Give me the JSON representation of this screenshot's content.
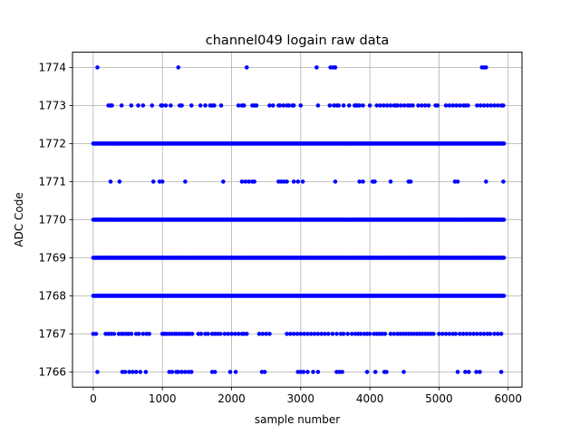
{
  "chart_data": {
    "type": "scatter",
    "title": "channel049 logain raw data",
    "xlabel": "sample number",
    "ylabel": "ADC Code",
    "xlim": [
      -300,
      6200
    ],
    "ylim": [
      1765.6,
      1774.4
    ],
    "xticks": [
      0,
      1000,
      2000,
      3000,
      4000,
      5000,
      6000
    ],
    "yticks": [
      1766,
      1767,
      1768,
      1769,
      1770,
      1771,
      1772,
      1773,
      1774
    ],
    "grid": true,
    "marker_color": "#0000ff",
    "sample_count": 5940,
    "levels": [
      {
        "y": 1774,
        "x": [
          60,
          1230,
          2220,
          3230,
          3430,
          3470,
          3500,
          5620,
          5650,
          5680
        ]
      },
      {
        "y": 1773,
        "x": [
          220,
          250,
          270,
          410,
          550,
          650,
          720,
          850,
          980,
          1000,
          1050,
          1120,
          1250,
          1280,
          1420,
          1550,
          1620,
          1690,
          1720,
          1750,
          1850,
          2100,
          2150,
          2180,
          2300,
          2330,
          2360,
          2550,
          2600,
          2680,
          2700,
          2750,
          2800,
          2830,
          2880,
          2900,
          3000,
          3250,
          3420,
          3480,
          3520,
          3550,
          3620,
          3700,
          3780,
          3800,
          3820,
          3850,
          3900,
          4000,
          4100,
          4150,
          4200,
          4250,
          4300,
          4350,
          4380,
          4400,
          4450,
          4500,
          4550,
          4580,
          4620,
          4700,
          4750,
          4800,
          4850,
          4950,
          4980,
          5100,
          5150,
          5200,
          5250,
          5300,
          5350,
          5380,
          5420,
          5550,
          5600,
          5650,
          5700,
          5750,
          5800,
          5850,
          5900,
          5930
        ]
      },
      {
        "y": 1771,
        "x": [
          250,
          380,
          870,
          960,
          1000,
          1330,
          1880,
          2150,
          2200,
          2250,
          2300,
          2330,
          2680,
          2720,
          2760,
          2800,
          2900,
          2960,
          3030,
          3500,
          3850,
          3900,
          4040,
          4070,
          4300,
          4560,
          4590,
          5230,
          5270,
          5680,
          5930
        ]
      },
      {
        "y": 1767,
        "x": [
          0,
          40,
          180,
          220,
          260,
          300,
          370,
          410,
          440,
          480,
          510,
          550,
          620,
          660,
          720,
          770,
          810,
          1000,
          1030,
          1060,
          1100,
          1140,
          1180,
          1210,
          1250,
          1290,
          1330,
          1360,
          1390,
          1430,
          1520,
          1560,
          1620,
          1660,
          1720,
          1760,
          1800,
          1840,
          1900,
          1950,
          2000,
          2050,
          2100,
          2150,
          2180,
          2220,
          2400,
          2450,
          2500,
          2550,
          2800,
          2850,
          2900,
          2950,
          3000,
          3050,
          3100,
          3150,
          3200,
          3250,
          3300,
          3350,
          3400,
          3460,
          3520,
          3580,
          3620,
          3680,
          3740,
          3790,
          3830,
          3870,
          3920,
          3960,
          4000,
          4060,
          4100,
          4140,
          4180,
          4220,
          4300,
          4350,
          4400,
          4440,
          4480,
          4520,
          4560,
          4600,
          4640,
          4680,
          4720,
          4760,
          4800,
          4840,
          4880,
          4920,
          5000,
          5050,
          5100,
          5150,
          5200,
          5240,
          5300,
          5350,
          5400,
          5450,
          5500,
          5550,
          5600,
          5650,
          5700,
          5740,
          5800,
          5850,
          5900
        ]
      },
      {
        "y": 1766,
        "x": [
          60,
          420,
          460,
          520,
          570,
          620,
          680,
          760,
          1100,
          1140,
          1200,
          1230,
          1280,
          1330,
          1380,
          1420,
          1720,
          1760,
          1980,
          2060,
          2440,
          2480,
          2960,
          3000,
          3040,
          3100,
          3180,
          3250,
          3520,
          3560,
          3600,
          3960,
          4080,
          4210,
          4240,
          4490,
          5270,
          5380,
          5430,
          5540,
          5590,
          5900
        ]
      }
    ],
    "dense_levels": [
      1772,
      1770,
      1769,
      1768
    ]
  }
}
